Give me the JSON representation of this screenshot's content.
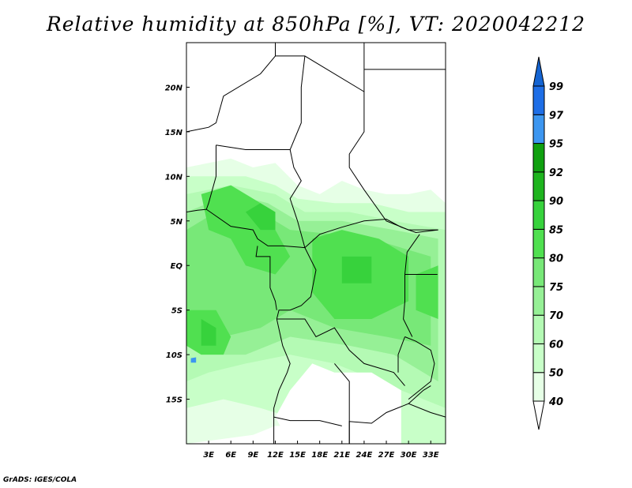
{
  "title": "Relative humidity at 850hPa [%], VT: 2020042212",
  "credit": "GrADS: IGES/COLA",
  "map": {
    "lon_range": [
      0,
      35
    ],
    "lat_range": [
      -20,
      25
    ],
    "lon_ticks": [
      {
        "v": 3,
        "label": "3E"
      },
      {
        "v": 6,
        "label": "6E"
      },
      {
        "v": 9,
        "label": "9E"
      },
      {
        "v": 12,
        "label": "12E"
      },
      {
        "v": 15,
        "label": "15E"
      },
      {
        "v": 18,
        "label": "18E"
      },
      {
        "v": 21,
        "label": "21E"
      },
      {
        "v": 24,
        "label": "24E"
      },
      {
        "v": 27,
        "label": "27E"
      },
      {
        "v": 30,
        "label": "30E"
      },
      {
        "v": 33,
        "label": "33E"
      }
    ],
    "lat_ticks": [
      {
        "v": 20,
        "label": "20N"
      },
      {
        "v": 15,
        "label": "15N"
      },
      {
        "v": 10,
        "label": "10N"
      },
      {
        "v": 5,
        "label": "5N"
      },
      {
        "v": 0,
        "label": "EQ"
      },
      {
        "v": -5,
        "label": "5S"
      },
      {
        "v": -10,
        "label": "10S"
      },
      {
        "v": -15,
        "label": "15S"
      }
    ]
  },
  "colorbar": {
    "levels": [
      "40",
      "50",
      "60",
      "70",
      "75",
      "80",
      "85",
      "90",
      "92",
      "95",
      "97",
      "99"
    ],
    "colors": [
      "#e6ffe6",
      "#c8ffc8",
      "#b4fab4",
      "#96f096",
      "#78e878",
      "#50e050",
      "#37d23c",
      "#1eb41e",
      "#0fa00f",
      "#3c96f0",
      "#1e6ee6",
      "#1464d2"
    ]
  }
}
